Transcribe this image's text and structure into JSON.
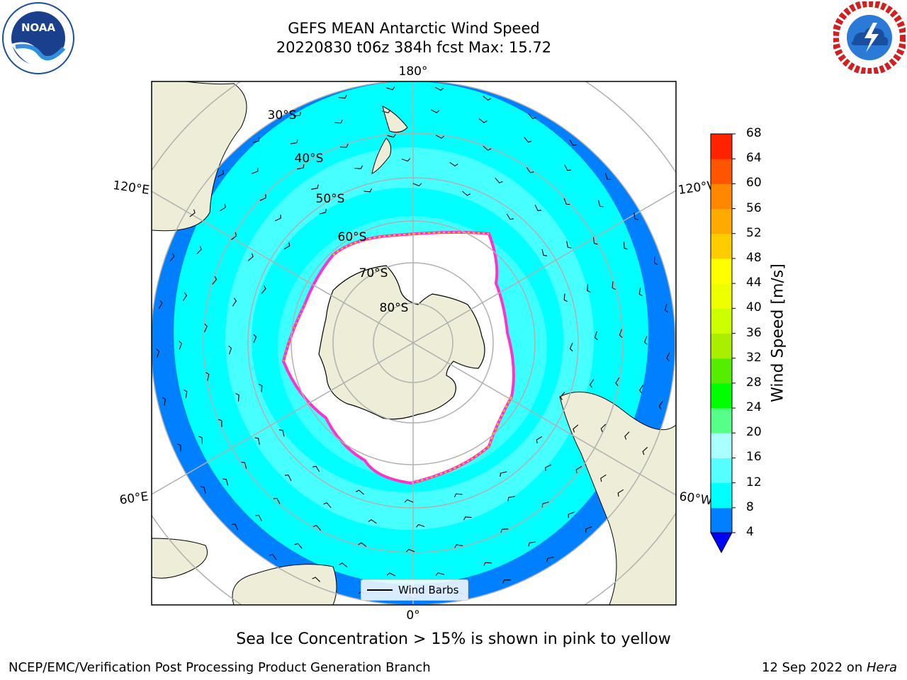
{
  "header": {
    "title_line1": "GEFS MEAN Antarctic Wind Speed",
    "title_line2": "20220830 t06z 384h fcst   Max: 15.72"
  },
  "logos": {
    "left": {
      "icon": "noaa-logo",
      "text": "NOAA"
    },
    "right": {
      "icon": "nws-logo"
    }
  },
  "map": {
    "projection": "south-polar-stereographic",
    "colors": {
      "ocean_slow": "#0080ff",
      "ocean_mid": "#00ffff",
      "ocean_fast": "#55ffff",
      "land": "#eeeed8",
      "sea_ice": "#ffffff",
      "ice_edge": "#ff33cc",
      "grid": "#b0b0b0"
    },
    "longitude_labels": {
      "top": "180°",
      "bottom": "0°",
      "upper_left": "120°E",
      "upper_right": "120°W",
      "lower_left": "60°E",
      "lower_right": "60°W"
    },
    "latitude_labels": [
      "30°S",
      "40°S",
      "50°S",
      "60°S",
      "70°S",
      "80°S"
    ],
    "legend_label": "Wind Barbs"
  },
  "colorbar": {
    "label": "Wind Speed [m/s]",
    "ticks": [
      "4",
      "8",
      "12",
      "16",
      "20",
      "24",
      "28",
      "32",
      "36",
      "40",
      "44",
      "48",
      "52",
      "56",
      "60",
      "64",
      "68"
    ],
    "colors": [
      "#0080ff",
      "#00ffff",
      "#55ffff",
      "#aaffff",
      "#55ff88",
      "#00ff00",
      "#55ee00",
      "#aaee00",
      "#ccff00",
      "#eeff00",
      "#ffff00",
      "#ffcc00",
      "#ffaa00",
      "#ff8800",
      "#ff5500",
      "#ff2200"
    ],
    "underflow_color": "#0000ff"
  },
  "caption": "Sea Ice Concentration > 15% is shown in pink to yellow",
  "footer": {
    "left": "NCEP/EMC/Verification Post Processing Product Generation Branch",
    "right_date": "12 Sep 2022 on ",
    "right_machine": "Hera"
  }
}
